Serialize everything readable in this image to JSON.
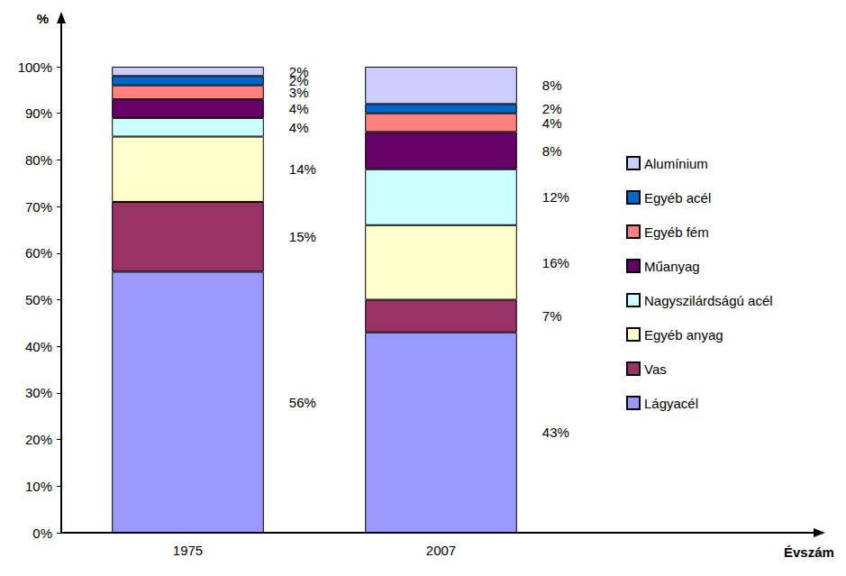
{
  "chart_data": {
    "type": "bar",
    "stacked": true,
    "data_labels": true,
    "legend": "right",
    "grid": false,
    "x_label": "Évszám",
    "y_label": "%",
    "categories": [
      "1975",
      "2007"
    ],
    "ylim": [
      0,
      100
    ],
    "yticks": [
      {
        "value": 0,
        "label": "0%"
      },
      {
        "value": 10,
        "label": "10%"
      },
      {
        "value": 20,
        "label": "20%"
      },
      {
        "value": 30,
        "label": "30%"
      },
      {
        "value": 40,
        "label": "40%"
      },
      {
        "value": 50,
        "label": "50%"
      },
      {
        "value": 60,
        "label": "60%"
      },
      {
        "value": 70,
        "label": "70%"
      },
      {
        "value": 80,
        "label": "80%"
      },
      {
        "value": 90,
        "label": "90%"
      },
      {
        "value": 100,
        "label": "100%"
      }
    ],
    "series": [
      {
        "name": "Lágyacél",
        "color": "#9999ff",
        "values": [
          56,
          43
        ],
        "value_labels": [
          "56%",
          "43%"
        ]
      },
      {
        "name": "Vas",
        "color": "#993366",
        "values": [
          15,
          7
        ],
        "value_labels": [
          "15%",
          "7%"
        ]
      },
      {
        "name": "Egyéb anyag",
        "color": "#ffffcc",
        "values": [
          14,
          16
        ],
        "value_labels": [
          "14%",
          "16%"
        ]
      },
      {
        "name": "Nagyszilárdságú acél",
        "color": "#ccffff",
        "values": [
          4,
          12
        ],
        "value_labels": [
          "4%",
          "12%"
        ]
      },
      {
        "name": "Műanyag",
        "color": "#660066",
        "values": [
          4,
          8
        ],
        "value_labels": [
          "4%",
          "8%"
        ]
      },
      {
        "name": "Egyéb fém",
        "color": "#ff8080",
        "values": [
          3,
          4
        ],
        "value_labels": [
          "3%",
          "4%"
        ]
      },
      {
        "name": "Egyéb acél",
        "color": "#0066cc",
        "values": [
          2,
          2
        ],
        "value_labels": [
          "2%",
          "2%"
        ]
      },
      {
        "name": "Alumínium",
        "color": "#ccccff",
        "values": [
          2,
          8
        ],
        "value_labels": [
          "2%",
          "8%"
        ]
      }
    ]
  }
}
